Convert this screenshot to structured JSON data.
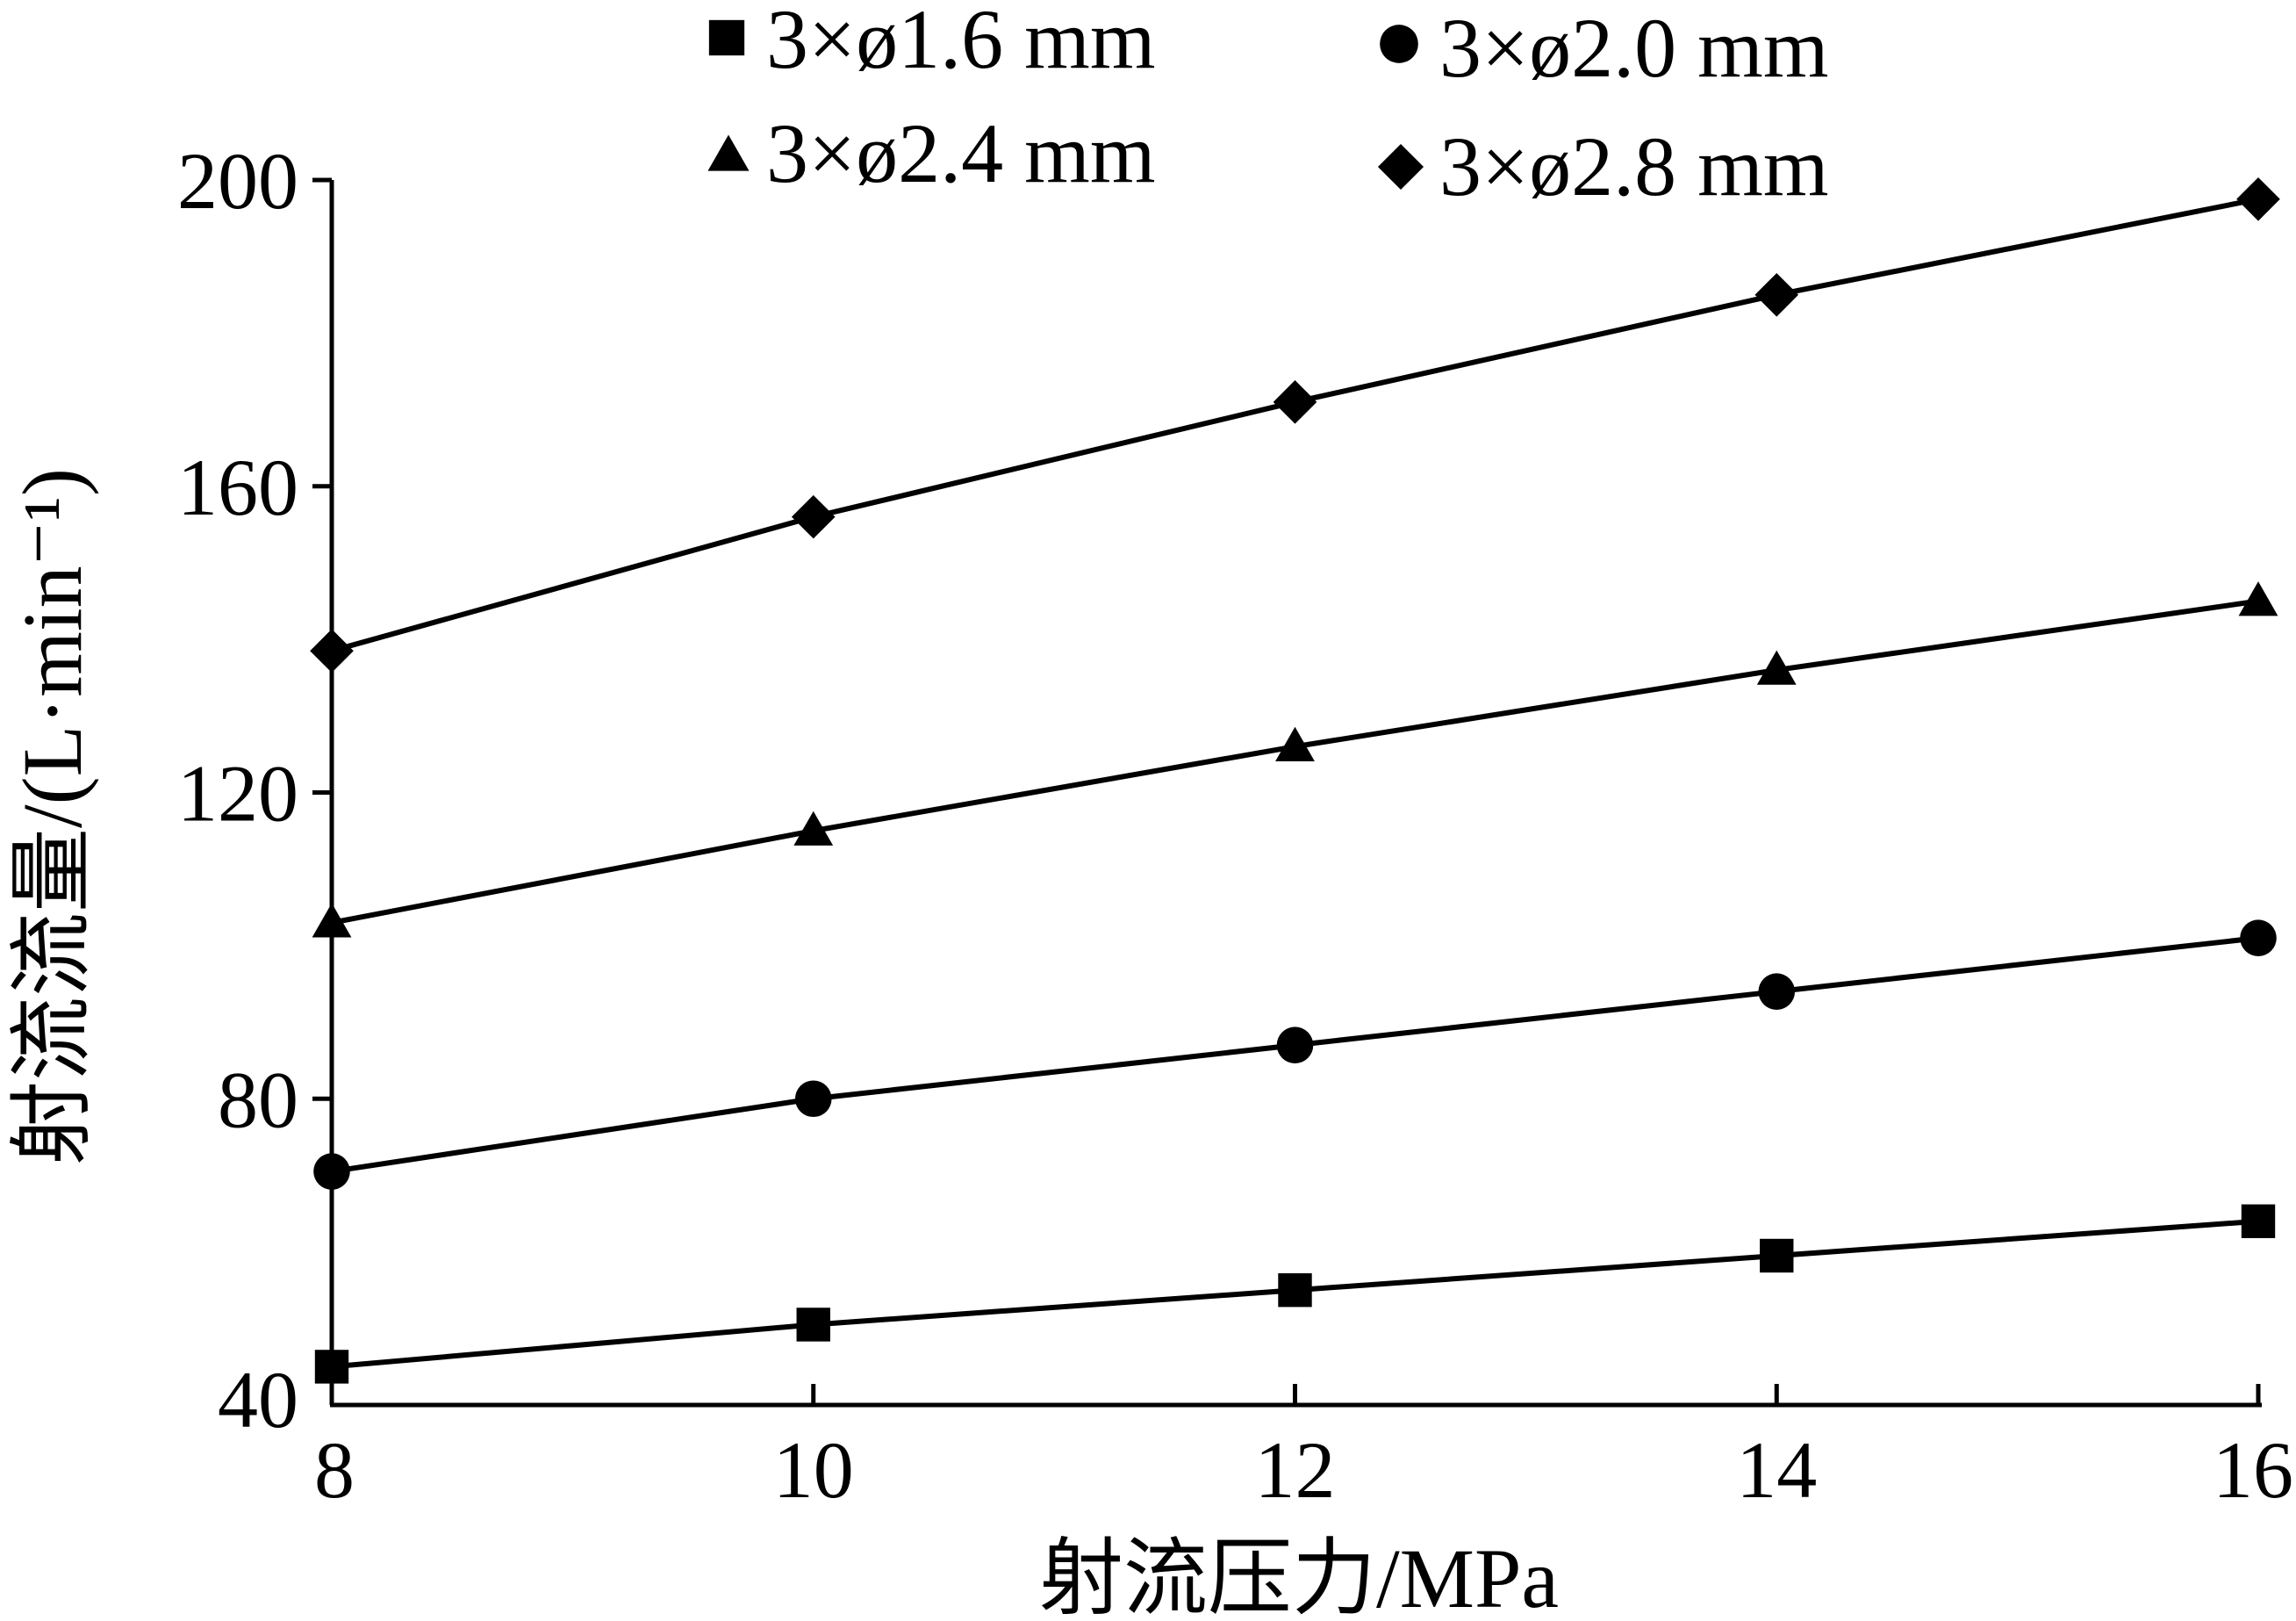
{
  "chart_data": {
    "type": "line",
    "title": "",
    "xlabel": "射流压力/MPa",
    "ylabel": "射流流量/(L·min⁻¹)",
    "xlim": [
      8,
      16
    ],
    "ylim": [
      40,
      200
    ],
    "xticks": [
      "8",
      "10",
      "12",
      "14",
      "16"
    ],
    "yticks": [
      "40",
      "80",
      "120",
      "160",
      "200"
    ],
    "x": [
      8,
      10,
      12,
      14,
      16
    ],
    "grid": false,
    "legend_position": "top",
    "series": [
      {
        "name": "3×ø1.6 mm",
        "marker": "square",
        "values": [
          45,
          50.5,
          55,
          59.5,
          64
        ]
      },
      {
        "name": "3×ø2.0 mm",
        "marker": "circle",
        "values": [
          70.5,
          80,
          87,
          94,
          101
        ]
      },
      {
        "name": "3×ø2.4 mm",
        "marker": "triangle",
        "values": [
          103,
          115,
          126,
          136,
          145
        ]
      },
      {
        "name": "3×ø2.8 mm",
        "marker": "diamond",
        "values": [
          138.5,
          156,
          171,
          185,
          197.5
        ]
      }
    ],
    "colors": {
      "line": "#000000",
      "marker": "#000000"
    }
  }
}
